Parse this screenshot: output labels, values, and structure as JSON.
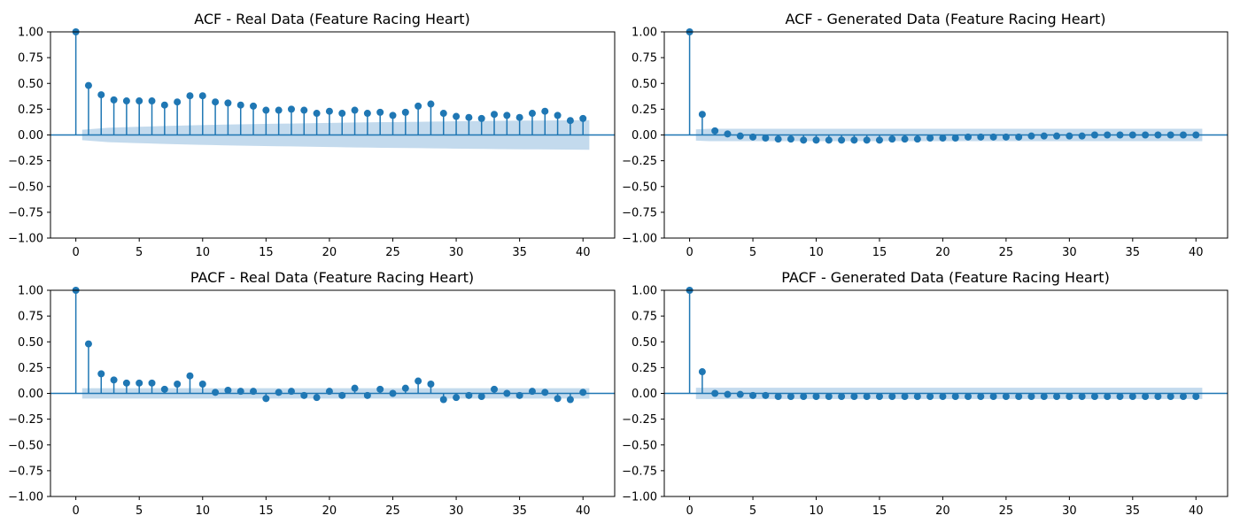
{
  "colors": {
    "stem": "#1f77b4",
    "band": "#b8d3ea",
    "axis": "#000000",
    "zero_line": "#1f77b4"
  },
  "chart_data": [
    {
      "type": "scatter",
      "title": "ACF - Real Data (Feature Racing Heart)",
      "xlabel": "",
      "ylabel": "",
      "xlim": [
        -2,
        42.5
      ],
      "ylim": [
        -1.0,
        1.0
      ],
      "xticks": [
        "0",
        "5",
        "10",
        "15",
        "20",
        "25",
        "30",
        "35",
        "40"
      ],
      "yticks": [
        "1.00",
        "0.75",
        "0.50",
        "0.25",
        "0.00",
        "−0.25",
        "−0.50",
        "−0.75",
        "−1.00"
      ],
      "grid": false,
      "lags": [
        0,
        1,
        2,
        3,
        4,
        5,
        6,
        7,
        8,
        9,
        10,
        11,
        12,
        13,
        14,
        15,
        16,
        17,
        18,
        19,
        20,
        21,
        22,
        23,
        24,
        25,
        26,
        27,
        28,
        29,
        30,
        31,
        32,
        33,
        34,
        35,
        36,
        37,
        38,
        39,
        40
      ],
      "values": [
        1.0,
        0.48,
        0.39,
        0.34,
        0.33,
        0.33,
        0.33,
        0.29,
        0.32,
        0.38,
        0.38,
        0.32,
        0.31,
        0.29,
        0.28,
        0.24,
        0.24,
        0.25,
        0.24,
        0.21,
        0.23,
        0.21,
        0.24,
        0.21,
        0.22,
        0.19,
        0.22,
        0.28,
        0.3,
        0.21,
        0.18,
        0.17,
        0.16,
        0.2,
        0.19,
        0.17,
        0.21,
        0.23,
        0.19,
        0.14,
        0.16
      ],
      "confidence_band": [
        0.05,
        0.06,
        0.07,
        0.074,
        0.078,
        0.082,
        0.086,
        0.089,
        0.092,
        0.095,
        0.098,
        0.101,
        0.103,
        0.105,
        0.107,
        0.109,
        0.111,
        0.113,
        0.115,
        0.117,
        0.119,
        0.121,
        0.122,
        0.124,
        0.125,
        0.127,
        0.128,
        0.13,
        0.131,
        0.133,
        0.134,
        0.135,
        0.137,
        0.138,
        0.139,
        0.14,
        0.141,
        0.142,
        0.143,
        0.144
      ]
    },
    {
      "type": "scatter",
      "title": "ACF - Generated Data (Feature Racing Heart)",
      "xlabel": "",
      "ylabel": "",
      "xlim": [
        -2,
        42.5
      ],
      "ylim": [
        -1.0,
        1.0
      ],
      "xticks": [
        "0",
        "5",
        "10",
        "15",
        "20",
        "25",
        "30",
        "35",
        "40"
      ],
      "yticks": [
        "1.00",
        "0.75",
        "0.50",
        "0.25",
        "0.00",
        "−0.25",
        "−0.50",
        "−0.75",
        "−1.00"
      ],
      "grid": false,
      "lags": [
        0,
        1,
        2,
        3,
        4,
        5,
        6,
        7,
        8,
        9,
        10,
        11,
        12,
        13,
        14,
        15,
        16,
        17,
        18,
        19,
        20,
        21,
        22,
        23,
        24,
        25,
        26,
        27,
        28,
        29,
        30,
        31,
        32,
        33,
        34,
        35,
        36,
        37,
        38,
        39,
        40
      ],
      "values": [
        1.0,
        0.2,
        0.04,
        0.01,
        -0.01,
        -0.02,
        -0.03,
        -0.04,
        -0.04,
        -0.05,
        -0.05,
        -0.05,
        -0.05,
        -0.05,
        -0.05,
        -0.05,
        -0.04,
        -0.04,
        -0.04,
        -0.03,
        -0.03,
        -0.03,
        -0.02,
        -0.02,
        -0.02,
        -0.02,
        -0.02,
        -0.01,
        -0.01,
        -0.01,
        -0.01,
        -0.01,
        0.0,
        0.0,
        0.0,
        0.0,
        0.0,
        0.0,
        0.0,
        0.0,
        0.0
      ],
      "confidence_band": [
        0.055,
        0.06,
        0.06,
        0.06,
        0.06,
        0.06,
        0.06,
        0.06,
        0.06,
        0.06,
        0.06,
        0.06,
        0.06,
        0.06,
        0.06,
        0.06,
        0.06,
        0.06,
        0.06,
        0.06,
        0.06,
        0.06,
        0.06,
        0.06,
        0.06,
        0.06,
        0.06,
        0.06,
        0.06,
        0.06,
        0.06,
        0.06,
        0.06,
        0.06,
        0.06,
        0.06,
        0.06,
        0.06,
        0.06,
        0.06
      ]
    },
    {
      "type": "scatter",
      "title": "PACF - Real Data (Feature Racing Heart)",
      "xlabel": "",
      "ylabel": "",
      "xlim": [
        -2,
        42.5
      ],
      "ylim": [
        -1.0,
        1.0
      ],
      "xticks": [
        "0",
        "5",
        "10",
        "15",
        "20",
        "25",
        "30",
        "35",
        "40"
      ],
      "yticks": [
        "1.00",
        "0.75",
        "0.50",
        "0.25",
        "0.00",
        "−0.25",
        "−0.50",
        "−0.75",
        "−1.00"
      ],
      "grid": false,
      "lags": [
        0,
        1,
        2,
        3,
        4,
        5,
        6,
        7,
        8,
        9,
        10,
        11,
        12,
        13,
        14,
        15,
        16,
        17,
        18,
        19,
        20,
        21,
        22,
        23,
        24,
        25,
        26,
        27,
        28,
        29,
        30,
        31,
        32,
        33,
        34,
        35,
        36,
        37,
        38,
        39,
        40
      ],
      "values": [
        1.0,
        0.48,
        0.19,
        0.13,
        0.1,
        0.1,
        0.1,
        0.04,
        0.09,
        0.17,
        0.09,
        0.01,
        0.03,
        0.02,
        0.02,
        -0.05,
        0.01,
        0.02,
        -0.02,
        -0.04,
        0.02,
        -0.02,
        0.05,
        -0.02,
        0.04,
        0.0,
        0.05,
        0.12,
        0.09,
        -0.06,
        -0.04,
        -0.02,
        -0.03,
        0.04,
        0.0,
        -0.02,
        0.02,
        0.01,
        -0.05,
        -0.06,
        0.01
      ],
      "confidence_band": [
        0.05,
        0.05,
        0.05,
        0.05,
        0.05,
        0.05,
        0.05,
        0.05,
        0.05,
        0.05,
        0.05,
        0.05,
        0.05,
        0.05,
        0.05,
        0.05,
        0.05,
        0.05,
        0.05,
        0.05,
        0.05,
        0.05,
        0.05,
        0.05,
        0.05,
        0.05,
        0.05,
        0.05,
        0.05,
        0.05,
        0.05,
        0.05,
        0.05,
        0.05,
        0.05,
        0.05,
        0.05,
        0.05,
        0.05,
        0.05
      ]
    },
    {
      "type": "scatter",
      "title": "PACF - Generated Data (Feature Racing Heart)",
      "xlabel": "",
      "ylabel": "",
      "xlim": [
        -2,
        42.5
      ],
      "ylim": [
        -1.0,
        1.0
      ],
      "xticks": [
        "0",
        "5",
        "10",
        "15",
        "20",
        "25",
        "30",
        "35",
        "40"
      ],
      "yticks": [
        "1.00",
        "0.75",
        "0.50",
        "0.25",
        "0.00",
        "−0.25",
        "−0.50",
        "−0.75",
        "−1.00"
      ],
      "grid": false,
      "lags": [
        0,
        1,
        2,
        3,
        4,
        5,
        6,
        7,
        8,
        9,
        10,
        11,
        12,
        13,
        14,
        15,
        16,
        17,
        18,
        19,
        20,
        21,
        22,
        23,
        24,
        25,
        26,
        27,
        28,
        29,
        30,
        31,
        32,
        33,
        34,
        35,
        36,
        37,
        38,
        39,
        40
      ],
      "values": [
        1.0,
        0.21,
        0.0,
        -0.01,
        -0.01,
        -0.02,
        -0.02,
        -0.03,
        -0.03,
        -0.03,
        -0.03,
        -0.03,
        -0.03,
        -0.03,
        -0.03,
        -0.03,
        -0.03,
        -0.03,
        -0.03,
        -0.03,
        -0.03,
        -0.03,
        -0.03,
        -0.03,
        -0.03,
        -0.03,
        -0.03,
        -0.03,
        -0.03,
        -0.03,
        -0.03,
        -0.03,
        -0.03,
        -0.03,
        -0.03,
        -0.03,
        -0.03,
        -0.03,
        -0.03,
        -0.03,
        -0.03
      ],
      "confidence_band": [
        0.055,
        0.055,
        0.055,
        0.055,
        0.055,
        0.055,
        0.055,
        0.055,
        0.055,
        0.055,
        0.055,
        0.055,
        0.055,
        0.055,
        0.055,
        0.055,
        0.055,
        0.055,
        0.055,
        0.055,
        0.055,
        0.055,
        0.055,
        0.055,
        0.055,
        0.055,
        0.055,
        0.055,
        0.055,
        0.055,
        0.055,
        0.055,
        0.055,
        0.055,
        0.055,
        0.055,
        0.055,
        0.055,
        0.055,
        0.055
      ]
    }
  ]
}
